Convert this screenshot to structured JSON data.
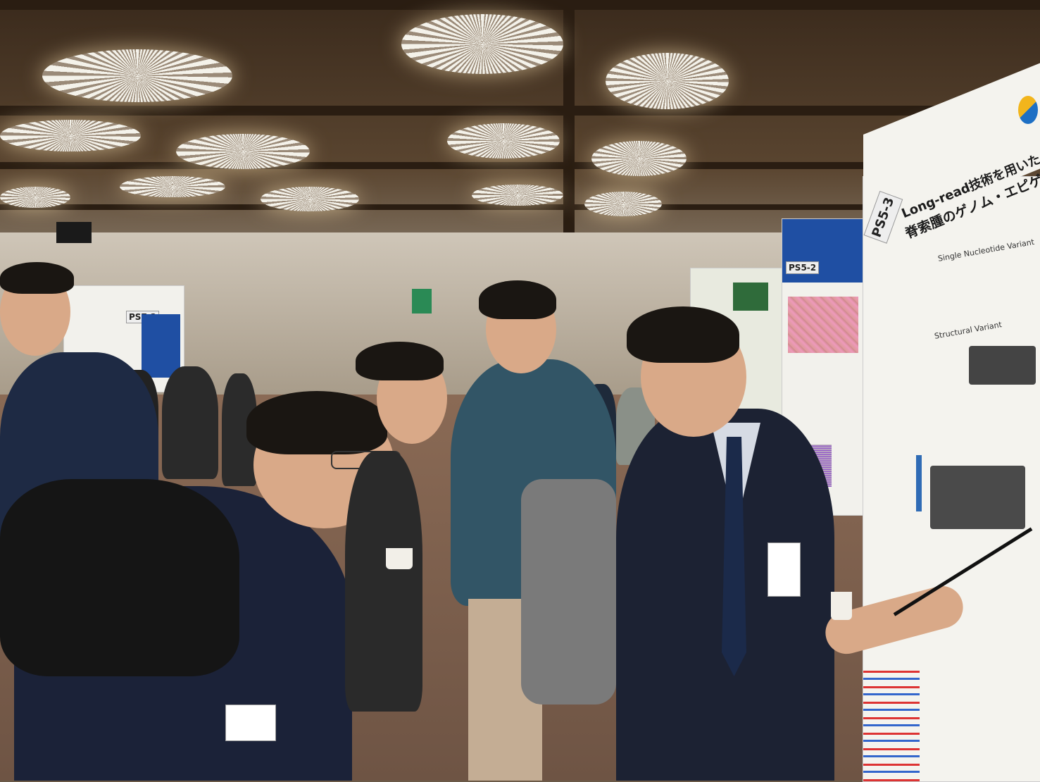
{
  "scene": {
    "description_tags": [
      "poster-session",
      "conference-hall",
      "ceiling-lamps",
      "attendees"
    ]
  },
  "posters": {
    "main": {
      "number": "PS5-3",
      "title_line1": "Long-read技術を用いた",
      "title_line2": "脊索腫のゲノム・エピゲノム解析",
      "section1": "Single Nucleotide Variant",
      "section2": "Structural Variant",
      "logo_colors": [
        "#f2b51c",
        "#1d6fc4"
      ]
    },
    "second": {
      "number": "PS5-2"
    },
    "left": {
      "number": "PS7-2"
    }
  },
  "colors": {
    "ceiling": "#3a2a1c",
    "wall": "#cfc6b8",
    "floor": "#7a5c4a",
    "poster_blue": "#1f4fa3"
  }
}
